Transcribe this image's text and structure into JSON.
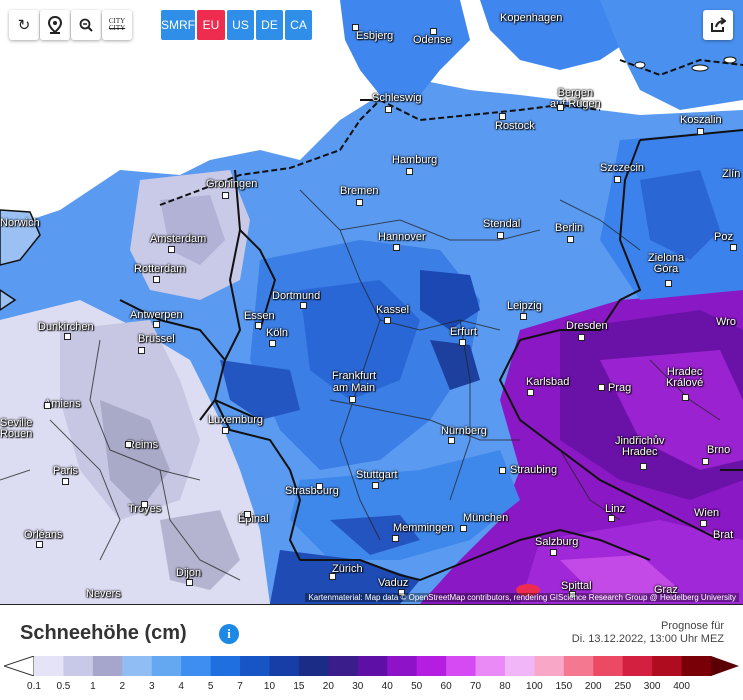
{
  "toolbar": {
    "reload_icon": "reload-icon",
    "locate_icon": "map-pin-icon",
    "zoom_icon": "zoom-out-icon",
    "city_top": "CITY",
    "city_bottom": "CITY"
  },
  "models": [
    {
      "label": "SMRF",
      "color": "#2f8fe8"
    },
    {
      "label": "EU",
      "color": "#ee2c4f"
    },
    {
      "label": "US",
      "color": "#2f8fe8"
    },
    {
      "label": "DE",
      "color": "#2f8fe8"
    },
    {
      "label": "CA",
      "color": "#2f8fe8"
    }
  ],
  "share_icon": "share-icon",
  "cities": [
    {
      "name": "Kopenhagen"
    },
    {
      "name": "Esbjerg"
    },
    {
      "name": "Odense"
    },
    {
      "name": "Bergen\nauf Rügen"
    },
    {
      "name": "Schleswig"
    },
    {
      "name": "Rostock"
    },
    {
      "name": "Koszalin"
    },
    {
      "name": "Hamburg"
    },
    {
      "name": "Szczecin"
    },
    {
      "name": "Groningen"
    },
    {
      "name": "Bremen"
    },
    {
      "name": "Norwich"
    },
    {
      "name": "Amsterdam"
    },
    {
      "name": "Stendal"
    },
    {
      "name": "Hannover"
    },
    {
      "name": "Berlin"
    },
    {
      "name": "Poz"
    },
    {
      "name": "Rotterdam"
    },
    {
      "name": "Zielona\nGóra"
    },
    {
      "name": "Dortmund"
    },
    {
      "name": "Antwerpen"
    },
    {
      "name": "Essen"
    },
    {
      "name": "Kassel"
    },
    {
      "name": "Leipzig"
    },
    {
      "name": "Dunkirchen"
    },
    {
      "name": "Köln"
    },
    {
      "name": "Erfurt"
    },
    {
      "name": "Dresden"
    },
    {
      "name": "Wro"
    },
    {
      "name": "Brüssel"
    },
    {
      "name": "Frankfurt\nam Main"
    },
    {
      "name": "Karlsbad"
    },
    {
      "name": "Prag"
    },
    {
      "name": "Hradec\nKrálové"
    },
    {
      "name": "Amiens"
    },
    {
      "name": "Luxemburg"
    },
    {
      "name": "Nürnberg"
    },
    {
      "name": "Jindřichův\nHradec"
    },
    {
      "name": "Brno"
    },
    {
      "name": "Reims"
    },
    {
      "name": "Paris"
    },
    {
      "name": "Stuttgart"
    },
    {
      "name": "Straubing"
    },
    {
      "name": "Strasbourg"
    },
    {
      "name": "Troyes"
    },
    {
      "name": "Linz"
    },
    {
      "name": "Wien"
    },
    {
      "name": "Épinal"
    },
    {
      "name": "München"
    },
    {
      "name": "Memmingen"
    },
    {
      "name": "Orléans"
    },
    {
      "name": "Salzburg"
    },
    {
      "name": "Brat"
    },
    {
      "name": "Dijon"
    },
    {
      "name": "Zürich"
    },
    {
      "name": "Vaduz"
    },
    {
      "name": "Spittal"
    },
    {
      "name": "Graz"
    },
    {
      "name": "Nevers"
    },
    {
      "name": "Zlín"
    },
    {
      "name": "Seville\nRouen"
    }
  ],
  "attribution": "Kartenmaterial: Map data © OpenStreetMap contributors, rendering GIScience Research Group @ Heidelberg University",
  "legend": {
    "title": "Schneehöhe (cm)",
    "info_icon": "info-icon",
    "forecast_label": "Prognose für",
    "forecast_time": "Di. 13.12.2022, 13:00 Uhr MEZ",
    "ticks": [
      "0.1",
      "0.5",
      "1",
      "2",
      "3",
      "4",
      "5",
      "7",
      "10",
      "15",
      "20",
      "30",
      "40",
      "50",
      "60",
      "70",
      "80",
      "100",
      "150",
      "200",
      "250",
      "300",
      "400"
    ],
    "colors": [
      "#e4e4f6",
      "#c8c8e8",
      "#a6a6cc",
      "#8fbdf4",
      "#64a8f2",
      "#3d8ef0",
      "#1f6fe0",
      "#1755c4",
      "#173ea6",
      "#1a2c86",
      "#3a1c8a",
      "#5e10a6",
      "#8e12c8",
      "#b51ee0",
      "#d54af2",
      "#e98af6",
      "#f0b6f8",
      "#f8a8c6",
      "#f47890",
      "#ec4a64",
      "#d42040",
      "#b00c20",
      "#7a0008"
    ]
  }
}
